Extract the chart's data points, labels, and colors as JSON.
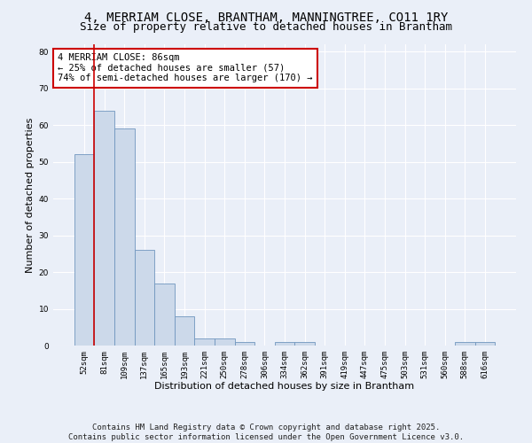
{
  "title": "4, MERRIAM CLOSE, BRANTHAM, MANNINGTREE, CO11 1RY",
  "subtitle": "Size of property relative to detached houses in Brantham",
  "xlabel": "Distribution of detached houses by size in Brantham",
  "ylabel": "Number of detached properties",
  "bar_color": "#ccd9ea",
  "bar_edge_color": "#7096be",
  "vline_color": "#cc0000",
  "vline_x": 0.5,
  "categories": [
    "52sqm",
    "81sqm",
    "109sqm",
    "137sqm",
    "165sqm",
    "193sqm",
    "221sqm",
    "250sqm",
    "278sqm",
    "306sqm",
    "334sqm",
    "362sqm",
    "391sqm",
    "419sqm",
    "447sqm",
    "475sqm",
    "503sqm",
    "531sqm",
    "560sqm",
    "588sqm",
    "616sqm"
  ],
  "values": [
    52,
    64,
    59,
    26,
    17,
    8,
    2,
    2,
    1,
    0,
    1,
    1,
    0,
    0,
    0,
    0,
    0,
    0,
    0,
    1,
    1
  ],
  "ylim": [
    0,
    82
  ],
  "yticks": [
    0,
    10,
    20,
    30,
    40,
    50,
    60,
    70,
    80
  ],
  "annotation_title": "4 MERRIAM CLOSE: 86sqm",
  "annotation_line1": "← 25% of detached houses are smaller (57)",
  "annotation_line2": "74% of semi-detached houses are larger (170) →",
  "footnote1": "Contains HM Land Registry data © Crown copyright and database right 2025.",
  "footnote2": "Contains public sector information licensed under the Open Government Licence v3.0.",
  "bg_color": "#eaeff8",
  "plot_bg_color": "#eaeff8",
  "grid_color": "#ffffff",
  "title_fontsize": 10,
  "subtitle_fontsize": 9,
  "axis_label_fontsize": 8,
  "tick_fontsize": 6.5,
  "annotation_fontsize": 7.5,
  "footnote_fontsize": 6.5
}
